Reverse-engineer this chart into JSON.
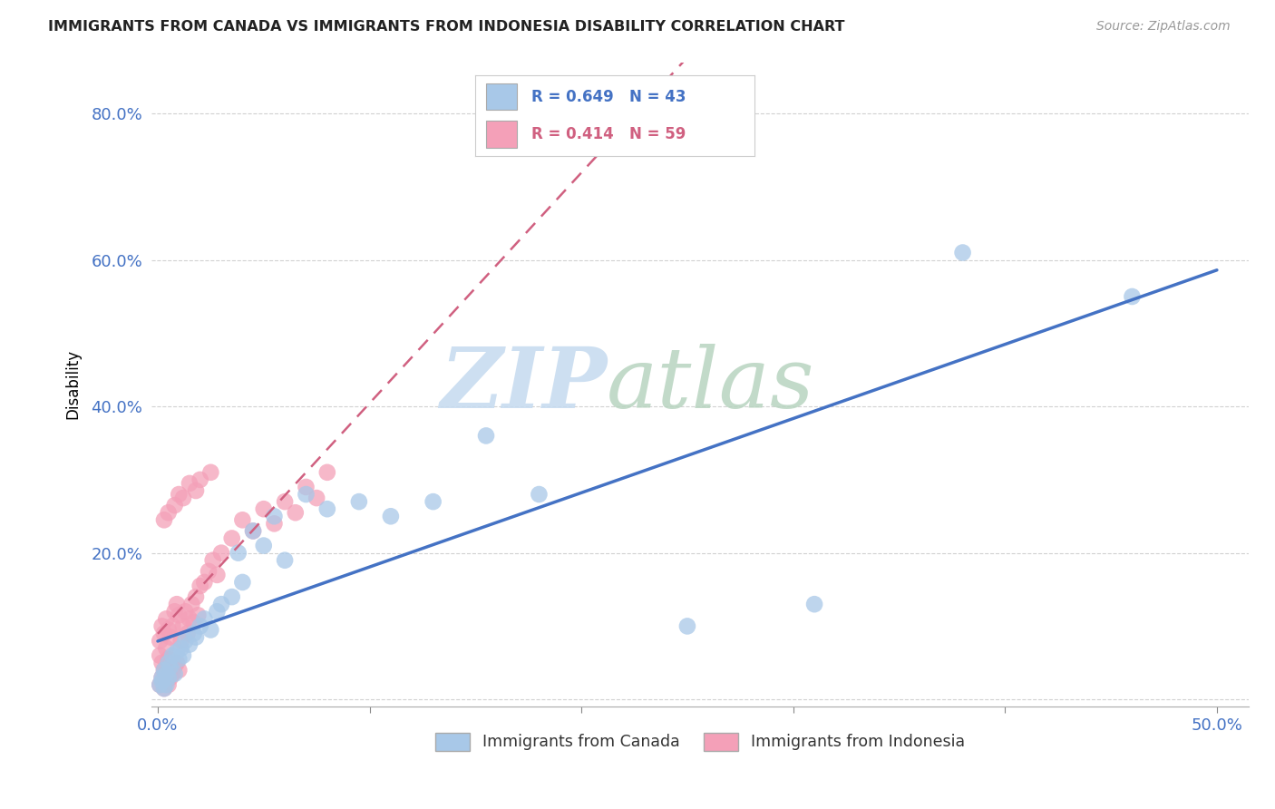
{
  "title": "IMMIGRANTS FROM CANADA VS IMMIGRANTS FROM INDONESIA DISABILITY CORRELATION CHART",
  "source": "Source: ZipAtlas.com",
  "ylabel": "Disability",
  "xlim": [
    -0.003,
    0.515
  ],
  "ylim": [
    -0.01,
    0.87
  ],
  "xtick_positions": [
    0.0,
    0.1,
    0.2,
    0.3,
    0.4,
    0.5
  ],
  "xticklabels": [
    "0.0%",
    "",
    "",
    "",
    "",
    "50.0%"
  ],
  "ytick_positions": [
    0.0,
    0.2,
    0.4,
    0.6,
    0.8
  ],
  "yticklabels": [
    "",
    "20.0%",
    "40.0%",
    "60.0%",
    "80.0%"
  ],
  "legend_labels": [
    "Immigrants from Canada",
    "Immigrants from Indonesia"
  ],
  "canada_R": "0.649",
  "canada_N": "43",
  "indonesia_R": "0.414",
  "indonesia_N": "59",
  "canada_color": "#a8c8e8",
  "indonesia_color": "#f4a0b8",
  "canada_line_color": "#4472c4",
  "indonesia_line_color": "#d06080",
  "grid_color": "#cccccc",
  "background_color": "#ffffff",
  "tick_label_color": "#4472c4",
  "canada_x": [
    0.001,
    0.002,
    0.002,
    0.003,
    0.003,
    0.004,
    0.004,
    0.005,
    0.005,
    0.006,
    0.007,
    0.008,
    0.009,
    0.01,
    0.011,
    0.012,
    0.013,
    0.015,
    0.017,
    0.018,
    0.02,
    0.022,
    0.025,
    0.028,
    0.03,
    0.035,
    0.038,
    0.04,
    0.045,
    0.05,
    0.055,
    0.06,
    0.07,
    0.08,
    0.095,
    0.11,
    0.13,
    0.155,
    0.18,
    0.25,
    0.31,
    0.38,
    0.46
  ],
  "canada_y": [
    0.02,
    0.025,
    0.03,
    0.015,
    0.04,
    0.02,
    0.035,
    0.03,
    0.05,
    0.045,
    0.06,
    0.035,
    0.065,
    0.055,
    0.07,
    0.06,
    0.08,
    0.075,
    0.09,
    0.085,
    0.1,
    0.11,
    0.095,
    0.12,
    0.13,
    0.14,
    0.2,
    0.16,
    0.23,
    0.21,
    0.25,
    0.19,
    0.28,
    0.26,
    0.27,
    0.25,
    0.27,
    0.36,
    0.28,
    0.1,
    0.13,
    0.61,
    0.55
  ],
  "indonesia_x": [
    0.001,
    0.001,
    0.001,
    0.002,
    0.002,
    0.002,
    0.003,
    0.003,
    0.003,
    0.004,
    0.004,
    0.004,
    0.005,
    0.005,
    0.005,
    0.006,
    0.006,
    0.007,
    0.007,
    0.008,
    0.008,
    0.009,
    0.009,
    0.01,
    0.01,
    0.011,
    0.012,
    0.013,
    0.014,
    0.015,
    0.016,
    0.017,
    0.018,
    0.019,
    0.02,
    0.022,
    0.024,
    0.026,
    0.028,
    0.03,
    0.035,
    0.04,
    0.045,
    0.05,
    0.055,
    0.06,
    0.065,
    0.07,
    0.075,
    0.08,
    0.003,
    0.005,
    0.008,
    0.01,
    0.012,
    0.015,
    0.018,
    0.02,
    0.025
  ],
  "indonesia_y": [
    0.02,
    0.06,
    0.08,
    0.03,
    0.05,
    0.1,
    0.015,
    0.04,
    0.09,
    0.025,
    0.07,
    0.11,
    0.02,
    0.055,
    0.095,
    0.03,
    0.085,
    0.035,
    0.1,
    0.045,
    0.12,
    0.05,
    0.13,
    0.04,
    0.115,
    0.08,
    0.1,
    0.12,
    0.09,
    0.11,
    0.13,
    0.105,
    0.14,
    0.115,
    0.155,
    0.16,
    0.175,
    0.19,
    0.17,
    0.2,
    0.22,
    0.245,
    0.23,
    0.26,
    0.24,
    0.27,
    0.255,
    0.29,
    0.275,
    0.31,
    0.245,
    0.255,
    0.265,
    0.28,
    0.275,
    0.295,
    0.285,
    0.3,
    0.31
  ]
}
